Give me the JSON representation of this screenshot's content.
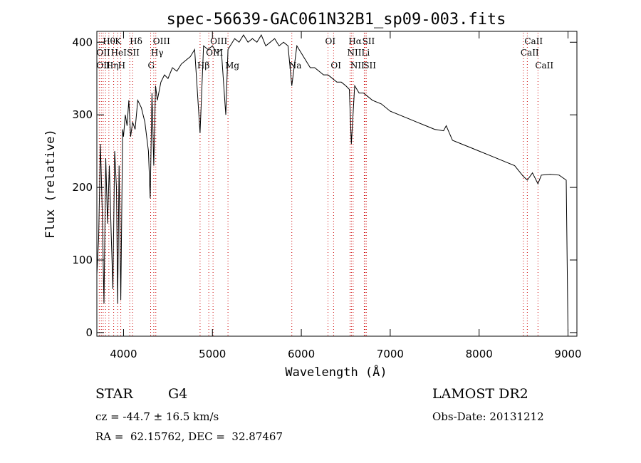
{
  "chart_data": {
    "type": "line",
    "title": "spec-56639-GAC061N32B1_sp09-003.fits",
    "xlabel": "Wavelength (Å)",
    "ylabel": "Flux (relative)",
    "xlim": [
      3700,
      9100
    ],
    "ylim": [
      -5,
      415
    ],
    "x_ticks": [
      4000,
      5000,
      6000,
      7000,
      8000,
      9000
    ],
    "y_ticks": [
      0,
      100,
      200,
      300,
      400
    ],
    "grid": false,
    "series": [
      {
        "x": [
          3700,
          3720,
          3740,
          3760,
          3780,
          3800,
          3820,
          3840,
          3860,
          3880,
          3900,
          3920,
          3934,
          3950,
          3969,
          3990,
          4000,
          4020,
          4040,
          4060,
          4080,
          4102,
          4130,
          4160,
          4200,
          4240,
          4280,
          4300,
          4320,
          4340,
          4360,
          4380,
          4420,
          4460,
          4500,
          4550,
          4600,
          4650,
          4700,
          4750,
          4800,
          4861,
          4900,
          4950,
          5000,
          5050,
          5100,
          5150,
          5175,
          5200,
          5250,
          5300,
          5350,
          5400,
          5450,
          5500,
          5550,
          5600,
          5650,
          5700,
          5750,
          5800,
          5850,
          5893,
          5950,
          6000,
          6050,
          6100,
          6150,
          6200,
          6250,
          6300,
          6350,
          6400,
          6450,
          6500,
          6540,
          6563,
          6600,
          6650,
          6700,
          6750,
          6800,
          6900,
          7000,
          7100,
          7200,
          7300,
          7400,
          7500,
          7600,
          7630,
          7700,
          7800,
          7900,
          8000,
          8100,
          8200,
          8300,
          8400,
          8498,
          8542,
          8600,
          8662,
          8700,
          8800,
          8900,
          8980,
          8990,
          9000
        ],
        "y": [
          80,
          130,
          260,
          170,
          40,
          240,
          150,
          230,
          140,
          60,
          250,
          200,
          40,
          230,
          45,
          280,
          270,
          300,
          285,
          320,
          270,
          290,
          280,
          320,
          310,
          290,
          250,
          185,
          330,
          230,
          340,
          320,
          345,
          355,
          350,
          365,
          360,
          370,
          375,
          380,
          390,
          275,
          395,
          390,
          395,
          385,
          390,
          300,
          390,
          395,
          405,
          400,
          410,
          400,
          405,
          400,
          410,
          395,
          400,
          405,
          395,
          400,
          395,
          340,
          395,
          385,
          375,
          365,
          365,
          360,
          355,
          355,
          350,
          345,
          345,
          340,
          335,
          260,
          340,
          330,
          330,
          325,
          320,
          315,
          305,
          300,
          295,
          290,
          285,
          280,
          278,
          285,
          265,
          260,
          255,
          250,
          245,
          240,
          235,
          230,
          215,
          210,
          220,
          205,
          217,
          218,
          217,
          210,
          100,
          0
        ]
      }
    ],
    "line_labels": [
      {
        "text": "Hθ",
        "x": 3798,
        "row": 1
      },
      {
        "text": "K",
        "x": 3934,
        "row": 1
      },
      {
        "text": "Hδ",
        "x": 4102,
        "row": 1
      },
      {
        "text": "OIII",
        "x": 4363,
        "row": 1
      },
      {
        "text": "OIII",
        "x": 5007,
        "row": 1
      },
      {
        "text": "OI",
        "x": 6300,
        "row": 1
      },
      {
        "text": "Hα",
        "x": 6563,
        "row": 1
      },
      {
        "text": "SII",
        "x": 6717,
        "row": 1
      },
      {
        "text": "CaII",
        "x": 8542,
        "row": 1
      },
      {
        "text": "OII",
        "x": 3727,
        "row": 2
      },
      {
        "text": "HeI",
        "x": 3889,
        "row": 2
      },
      {
        "text": "SII",
        "x": 4070,
        "row": 2
      },
      {
        "text": "Hγ",
        "x": 4340,
        "row": 2
      },
      {
        "text": "OIII",
        "x": 4959,
        "row": 2
      },
      {
        "text": "NII",
        "x": 6548,
        "row": 2
      },
      {
        "text": "Li",
        "x": 6708,
        "row": 2
      },
      {
        "text": "CaII",
        "x": 8498,
        "row": 2
      },
      {
        "text": "OII",
        "x": 3727,
        "row": 3
      },
      {
        "text": "Hη",
        "x": 3835,
        "row": 3
      },
      {
        "text": "H",
        "x": 3969,
        "row": 3
      },
      {
        "text": "G",
        "x": 4305,
        "row": 3
      },
      {
        "text": "Hβ",
        "x": 4861,
        "row": 3
      },
      {
        "text": "Mg",
        "x": 5175,
        "row": 3
      },
      {
        "text": "Na",
        "x": 5893,
        "row": 3
      },
      {
        "text": "OI",
        "x": 6363,
        "row": 3
      },
      {
        "text": "NII",
        "x": 6583,
        "row": 3
      },
      {
        "text": "SII",
        "x": 6731,
        "row": 3
      },
      {
        "text": "CaII",
        "x": 8662,
        "row": 3
      }
    ],
    "line_markers": [
      3727,
      3750,
      3771,
      3798,
      3835,
      3889,
      3934,
      3969,
      4070,
      4102,
      4305,
      4340,
      4363,
      4861,
      4959,
      5007,
      5175,
      5893,
      6300,
      6363,
      6548,
      6563,
      6583,
      6708,
      6717,
      6731,
      8498,
      8542,
      8662
    ],
    "marker_color": "#cc0000",
    "line_color": "#000000"
  },
  "footer": {
    "object_class": "STAR",
    "subclass": "G4",
    "redshift": "cz = -44.7 ± 16.5 km/s",
    "coords": "RA =  62.15762, DEC =  32.87467",
    "survey": "LAMOST DR2",
    "obs_date": "Obs-Date: 20131212"
  }
}
